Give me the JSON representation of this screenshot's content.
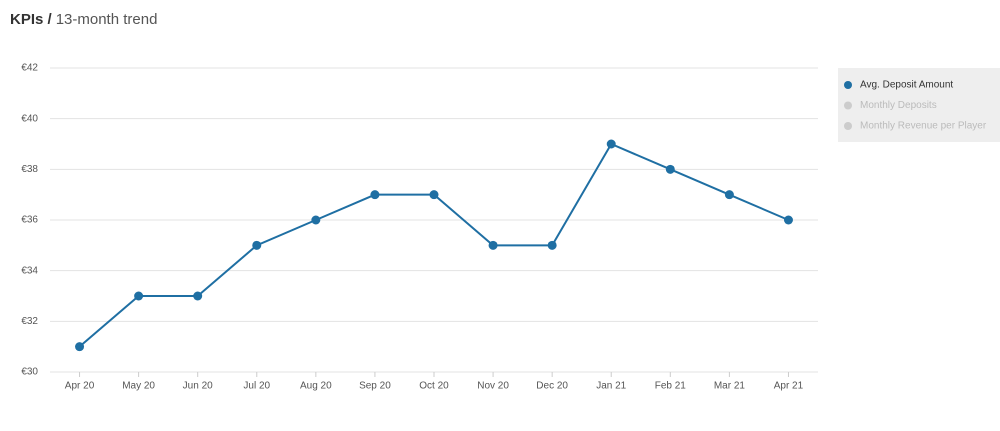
{
  "chart_data": {
    "type": "line",
    "title": "KPIs /",
    "subtitle": "13-month trend",
    "categories": [
      "Apr 20",
      "May 20",
      "Jun 20",
      "Jul 20",
      "Aug 20",
      "Sep 20",
      "Oct 20",
      "Nov 20",
      "Dec 20",
      "Jan 21",
      "Feb 21",
      "Mar 21",
      "Apr 21"
    ],
    "series": [
      {
        "name": "Avg. Deposit Amount",
        "color": "#1f6fa3",
        "visible": true,
        "values": [
          31,
          33,
          33,
          35,
          36,
          37,
          37,
          35,
          35,
          39,
          38,
          37,
          36
        ]
      },
      {
        "name": "Monthly Deposits",
        "color": "#cccccc",
        "visible": false
      },
      {
        "name": "Monthly Revenue per Player",
        "color": "#cccccc",
        "visible": false
      }
    ],
    "ylim": [
      30,
      42
    ],
    "yticks": [
      {
        "value": 30,
        "label": "€30"
      },
      {
        "value": 32,
        "label": "€32"
      },
      {
        "value": 34,
        "label": "€34"
      },
      {
        "value": 36,
        "label": "€36"
      },
      {
        "value": 38,
        "label": "€38"
      },
      {
        "value": 40,
        "label": "€40"
      },
      {
        "value": 42,
        "label": "€42"
      }
    ],
    "grid": true,
    "legend": "right"
  }
}
